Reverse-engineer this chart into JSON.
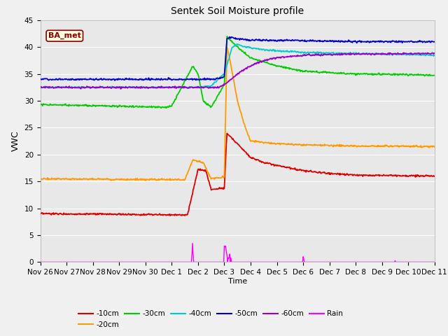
{
  "title": "Sentek Soil Moisture profile",
  "xlabel": "Time",
  "ylabel": "VWC",
  "ylim": [
    0,
    45
  ],
  "site_label": "BA_met",
  "fig_bg_color": "#f0f0f0",
  "plot_bg_color": "#e8e8e8",
  "colors": {
    "-10cm": "#dd0000",
    "-20cm": "#ff9900",
    "-30cm": "#00cc00",
    "-40cm": "#00cccc",
    "-50cm": "#0000cc",
    "-60cm": "#9900cc",
    "Rain": "#ff00ff"
  },
  "x_ticks": [
    "Nov 26",
    "Nov 27",
    "Nov 28",
    "Nov 29",
    "Nov 30",
    "Dec 1",
    "Dec 2",
    "Dec 3",
    "Dec 4",
    "Dec 5",
    "Dec 6",
    "Dec 7",
    "Dec 8",
    "Dec 9",
    "Dec 10",
    "Dec 11"
  ]
}
